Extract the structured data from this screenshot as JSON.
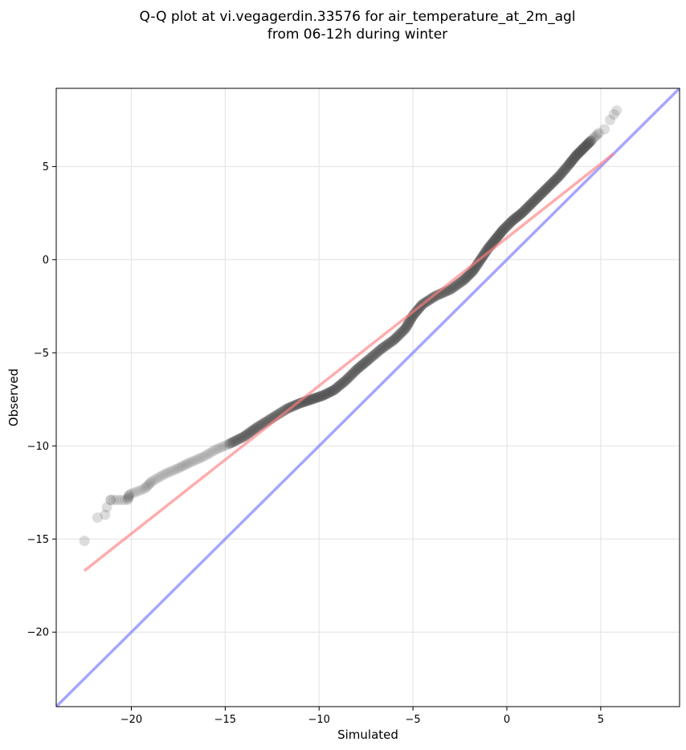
{
  "chart_data": {
    "type": "scatter",
    "title": "Q-Q plot at vi.vegagerdin.33576 for air_temperature_at_2m_agl",
    "subtitle": "from 06-12h during winter",
    "xlabel": "Simulated",
    "ylabel": "Observed",
    "xlim": [
      -24,
      9.2
    ],
    "ylim": [
      -24,
      9.2
    ],
    "x_ticks": [
      -20,
      -15,
      -10,
      -5,
      0,
      5
    ],
    "y_ticks": [
      -20,
      -15,
      -10,
      -5,
      0,
      5
    ],
    "x_tick_labels": [
      "−20",
      "−15",
      "−10",
      "−5",
      "0",
      "5"
    ],
    "y_tick_labels": [
      "−20",
      "−15",
      "−10",
      "−5",
      "0",
      "5"
    ],
    "grid": true,
    "point_color": "#555555",
    "qq_curve": [
      [
        -22.5,
        -15.1
      ],
      [
        -21.8,
        -13.85
      ],
      [
        -21.4,
        -13.7
      ],
      [
        -21.3,
        -13.3
      ],
      [
        -21.1,
        -12.9
      ],
      [
        -20.2,
        -12.9
      ],
      [
        -20.1,
        -12.6
      ],
      [
        -19.3,
        -12.3
      ],
      [
        -18.9,
        -11.9
      ],
      [
        -18.2,
        -11.5
      ],
      [
        -17.5,
        -11.2
      ],
      [
        -16.9,
        -10.9
      ],
      [
        -16.2,
        -10.6
      ],
      [
        -15.5,
        -10.2
      ],
      [
        -14.8,
        -9.9
      ],
      [
        -14.0,
        -9.5
      ],
      [
        -13.3,
        -9.0
      ],
      [
        -12.5,
        -8.5
      ],
      [
        -11.7,
        -8.0
      ],
      [
        -11.0,
        -7.7
      ],
      [
        -10.4,
        -7.5
      ],
      [
        -9.8,
        -7.3
      ],
      [
        -9.2,
        -7.0
      ],
      [
        -8.6,
        -6.5
      ],
      [
        -8.0,
        -5.9
      ],
      [
        -7.4,
        -5.4
      ],
      [
        -6.7,
        -4.8
      ],
      [
        -6.0,
        -4.3
      ],
      [
        -5.4,
        -3.7
      ],
      [
        -5.0,
        -3.0
      ],
      [
        -4.5,
        -2.4
      ],
      [
        -3.8,
        -1.95
      ],
      [
        -3.0,
        -1.6
      ],
      [
        -2.3,
        -1.1
      ],
      [
        -1.8,
        -0.6
      ],
      [
        -1.4,
        0.0
      ],
      [
        -1.0,
        0.6
      ],
      [
        -0.6,
        1.1
      ],
      [
        -0.2,
        1.6
      ],
      [
        0.3,
        2.1
      ],
      [
        0.8,
        2.5
      ],
      [
        1.3,
        3.0
      ],
      [
        1.8,
        3.5
      ],
      [
        2.3,
        4.0
      ],
      [
        2.8,
        4.5
      ],
      [
        3.3,
        5.1
      ],
      [
        3.7,
        5.6
      ],
      [
        4.1,
        6.0
      ],
      [
        4.5,
        6.4
      ],
      [
        4.9,
        6.8
      ],
      [
        5.2,
        7.0
      ],
      [
        5.5,
        7.5
      ],
      [
        5.7,
        7.8
      ],
      [
        5.85,
        8.0
      ]
    ],
    "fit_line": {
      "color": "#ff8080",
      "points": [
        [
          -22.5,
          -16.7
        ],
        [
          5.7,
          5.7
        ]
      ]
    },
    "identity_line": {
      "color": "#8080ff",
      "points": [
        [
          -24,
          -24
        ],
        [
          9.2,
          9.2
        ]
      ]
    }
  }
}
